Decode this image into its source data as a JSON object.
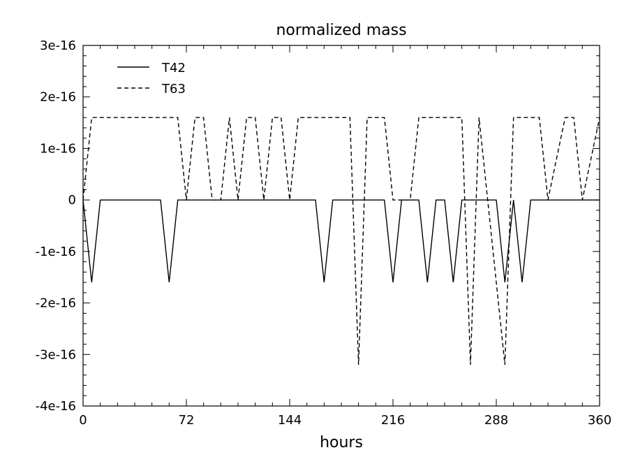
{
  "chart_data": {
    "type": "line",
    "title": "normalized mass",
    "xlabel": "hours",
    "ylabel": "",
    "xlim": [
      0,
      360
    ],
    "ylim": [
      -4e-16,
      3e-16
    ],
    "x_ticks": [
      0,
      72,
      144,
      216,
      288,
      360
    ],
    "x_tick_labels": [
      "0",
      "72",
      "144",
      "216",
      "288",
      "360"
    ],
    "y_ticks": [
      -4e-16,
      -3e-16,
      -2e-16,
      -1e-16,
      0,
      1e-16,
      2e-16,
      3e-16
    ],
    "y_tick_labels": [
      "-4e-16",
      "-3e-16",
      "-2e-16",
      "-1e-16",
      "0",
      "1e-16",
      "2e-16",
      "3e-16"
    ],
    "grid": false,
    "legend_position": "top-left",
    "series": [
      {
        "name": "T42",
        "dash": "solid",
        "x": [
          0,
          6,
          12,
          54,
          60,
          66,
          162,
          168,
          174,
          210,
          216,
          222,
          234,
          240,
          246,
          252,
          258,
          264,
          288,
          294,
          300,
          306,
          312,
          360
        ],
        "y": [
          0,
          -1.6e-16,
          0,
          0,
          -1.6e-16,
          0,
          0,
          -1.6e-16,
          0,
          0,
          -1.6e-16,
          0,
          0,
          -1.6e-16,
          0,
          0,
          -1.6e-16,
          0,
          0,
          -1.6e-16,
          0,
          -1.6e-16,
          0,
          0
        ]
      },
      {
        "name": "T63",
        "dash": "dashed",
        "x": [
          0,
          6,
          66,
          72,
          78,
          84,
          90,
          96,
          102,
          108,
          114,
          120,
          126,
          132,
          138,
          144,
          150,
          186,
          192,
          198,
          210,
          216,
          228,
          234,
          264,
          270,
          276,
          294,
          300,
          318,
          324,
          336,
          342,
          348,
          360
        ],
        "y": [
          0,
          1.6e-16,
          1.6e-16,
          0,
          1.6e-16,
          1.6e-16,
          0,
          0,
          1.6e-16,
          0,
          1.6e-16,
          1.6e-16,
          0,
          1.6e-16,
          1.6e-16,
          0,
          1.6e-16,
          1.6e-16,
          -3.2e-16,
          1.6e-16,
          1.6e-16,
          0,
          0,
          1.6e-16,
          1.6e-16,
          -3.2e-16,
          1.6e-16,
          -3.2e-16,
          1.6e-16,
          1.6e-16,
          0,
          1.6e-16,
          1.6e-16,
          0,
          1.6e-16
        ]
      }
    ]
  }
}
